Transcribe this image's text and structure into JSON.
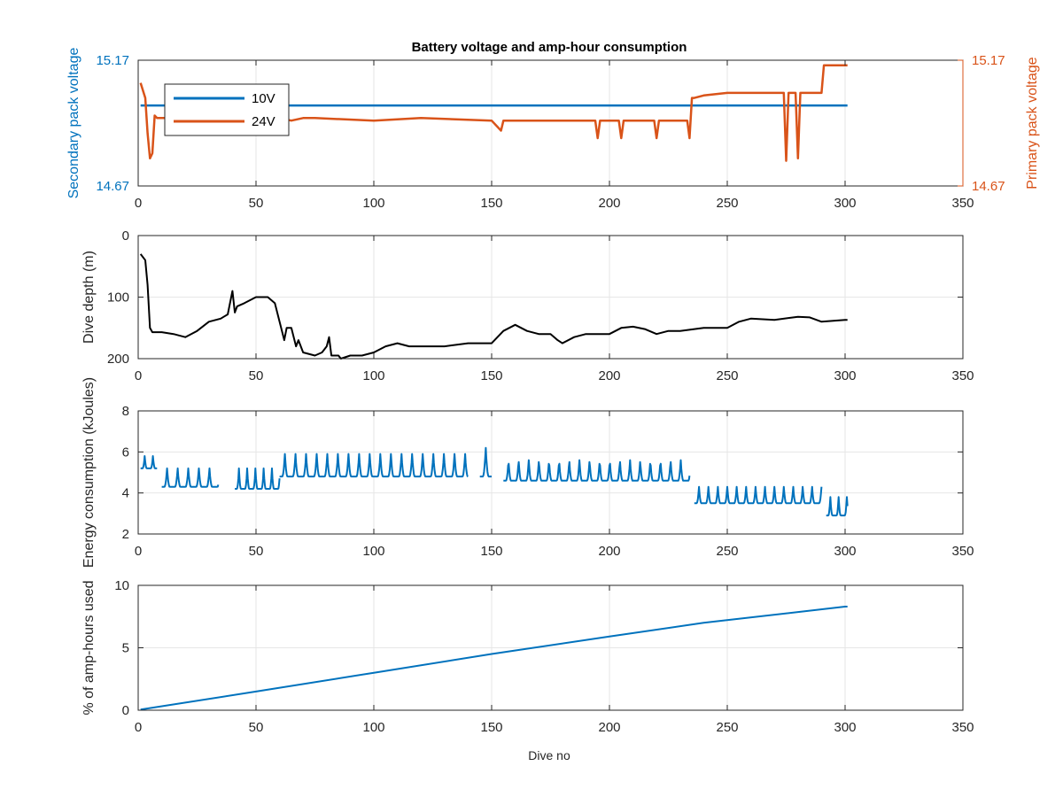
{
  "figure": {
    "title": "Battery voltage and amp-hour consumption",
    "xlabel": "Dive no"
  },
  "colors": {
    "blue": "#0072BD",
    "orange": "#D95319",
    "black": "#000000",
    "grid": "#e6e6e6",
    "axis": "#262626"
  },
  "chart_data": [
    {
      "type": "line",
      "title": "Battery voltage and amp-hour consumption",
      "xlabel": "",
      "ylabel_left": "Secondary pack voltage",
      "ylabel_right": "Primary pack voltage",
      "xlim": [
        0,
        350
      ],
      "xticks": [
        0,
        50,
        100,
        150,
        200,
        250,
        300,
        350
      ],
      "ylim": [
        14.67,
        15.17
      ],
      "yticks": [
        "14.67",
        "15.17"
      ],
      "grid": true,
      "legend": {
        "placement": "top-left",
        "entries": [
          "10V",
          "24V"
        ]
      },
      "series": [
        {
          "name": "10V",
          "axis": "left",
          "color": "#0072BD",
          "x": [
            1,
            301
          ],
          "y": [
            14.99,
            14.99
          ]
        },
        {
          "name": "24V",
          "axis": "right",
          "color": "#D95319",
          "x": [
            1,
            3,
            4,
            5,
            6,
            7,
            8,
            10,
            12,
            30,
            44,
            45,
            46,
            55,
            60,
            65,
            70,
            75,
            100,
            120,
            150,
            154,
            155,
            157,
            160,
            194,
            195,
            196,
            204,
            205,
            206,
            219,
            220,
            221,
            233,
            234,
            235,
            236,
            240,
            250,
            260,
            270,
            274,
            275,
            276,
            279,
            280,
            281,
            283,
            285,
            290,
            291,
            292,
            300,
            301
          ],
          "y": [
            15.08,
            15.02,
            14.88,
            14.78,
            14.8,
            14.95,
            14.94,
            14.94,
            14.94,
            14.94,
            14.93,
            14.88,
            14.94,
            14.94,
            14.94,
            14.93,
            14.94,
            14.94,
            14.93,
            14.94,
            14.93,
            14.89,
            14.93,
            14.93,
            14.93,
            14.93,
            14.86,
            14.93,
            14.93,
            14.86,
            14.93,
            14.93,
            14.86,
            14.93,
            14.93,
            14.86,
            15.02,
            15.02,
            15.03,
            15.04,
            15.04,
            15.04,
            15.04,
            14.77,
            15.04,
            15.04,
            14.78,
            15.04,
            15.04,
            15.04,
            15.04,
            15.15,
            15.15,
            15.15,
            15.15
          ]
        }
      ]
    },
    {
      "type": "line",
      "xlabel": "",
      "ylabel": "Dive depth (m)",
      "xlim": [
        0,
        350
      ],
      "xticks": [
        0,
        50,
        100,
        150,
        200,
        250,
        300,
        350
      ],
      "ylim": [
        0,
        200
      ],
      "yticks": [
        0,
        100,
        200
      ],
      "y_reversed": true,
      "grid": true,
      "series": [
        {
          "color": "#000000",
          "x": [
            1,
            3,
            4,
            5,
            6,
            10,
            15,
            20,
            25,
            30,
            35,
            38,
            40,
            41,
            42,
            45,
            50,
            55,
            58,
            60,
            62,
            63,
            65,
            67,
            68,
            70,
            75,
            78,
            80,
            81,
            82,
            85,
            86,
            90,
            95,
            100,
            105,
            110,
            115,
            120,
            130,
            140,
            150,
            155,
            160,
            165,
            170,
            175,
            178,
            180,
            185,
            190,
            195,
            200,
            205,
            210,
            215,
            220,
            225,
            230,
            240,
            250,
            255,
            260,
            270,
            280,
            285,
            290,
            300,
            301
          ],
          "y": [
            30,
            40,
            80,
            150,
            157,
            157,
            160,
            165,
            155,
            140,
            135,
            128,
            90,
            125,
            115,
            110,
            100,
            100,
            110,
            140,
            170,
            150,
            150,
            180,
            170,
            190,
            195,
            190,
            180,
            165,
            195,
            195,
            200,
            195,
            195,
            190,
            180,
            175,
            180,
            180,
            180,
            175,
            175,
            155,
            145,
            155,
            160,
            160,
            170,
            175,
            165,
            160,
            160,
            160,
            150,
            148,
            152,
            160,
            155,
            155,
            150,
            150,
            140,
            135,
            137,
            132,
            133,
            140,
            137,
            137
          ]
        }
      ]
    },
    {
      "type": "line",
      "xlabel": "",
      "ylabel": "Energy consumption (kJoules)",
      "xlim": [
        0,
        350
      ],
      "xticks": [
        0,
        50,
        100,
        150,
        200,
        250,
        300,
        350
      ],
      "ylim": [
        2,
        8
      ],
      "yticks": [
        2,
        4,
        6,
        8
      ],
      "grid": true,
      "segments": [
        {
          "x_start": 1,
          "x_end": 8,
          "base": 5.2,
          "peak": 5.8,
          "period": 3.5
        },
        {
          "x_start": 10,
          "x_end": 34,
          "base": 4.3,
          "peak": 5.2,
          "period": 4.5
        },
        {
          "x_start": 41,
          "x_end": 60,
          "base": 4.2,
          "peak": 5.2,
          "period": 3.5
        },
        {
          "x_start": 60,
          "x_end": 140,
          "base": 4.8,
          "peak": 5.9,
          "period": 4.5
        },
        {
          "x_start": 145,
          "x_end": 150,
          "base": 4.8,
          "peak": 6.2,
          "period": 5
        },
        {
          "x_start": 155,
          "x_end": 234,
          "base": 4.6,
          "peak": 5.6,
          "period": 4.3
        },
        {
          "x_start": 236,
          "x_end": 290,
          "base": 3.5,
          "peak": 4.3,
          "period": 4.0
        },
        {
          "x_start": 292,
          "x_end": 301,
          "base": 2.9,
          "peak": 3.8,
          "period": 3.5
        }
      ],
      "series": [
        {
          "color": "#0072BD"
        }
      ]
    },
    {
      "type": "line",
      "xlabel": "Dive no",
      "ylabel": "% of amp-hours used",
      "xlim": [
        0,
        350
      ],
      "xticks": [
        0,
        50,
        100,
        150,
        200,
        250,
        300,
        350
      ],
      "ylim": [
        0,
        10
      ],
      "yticks": [
        0,
        5,
        10
      ],
      "grid": true,
      "series": [
        {
          "color": "#0072BD",
          "x": [
            1,
            50,
            100,
            150,
            200,
            240,
            300,
            301
          ],
          "y": [
            0.05,
            1.5,
            3.0,
            4.5,
            5.9,
            7.0,
            8.3,
            8.3
          ]
        }
      ]
    }
  ]
}
